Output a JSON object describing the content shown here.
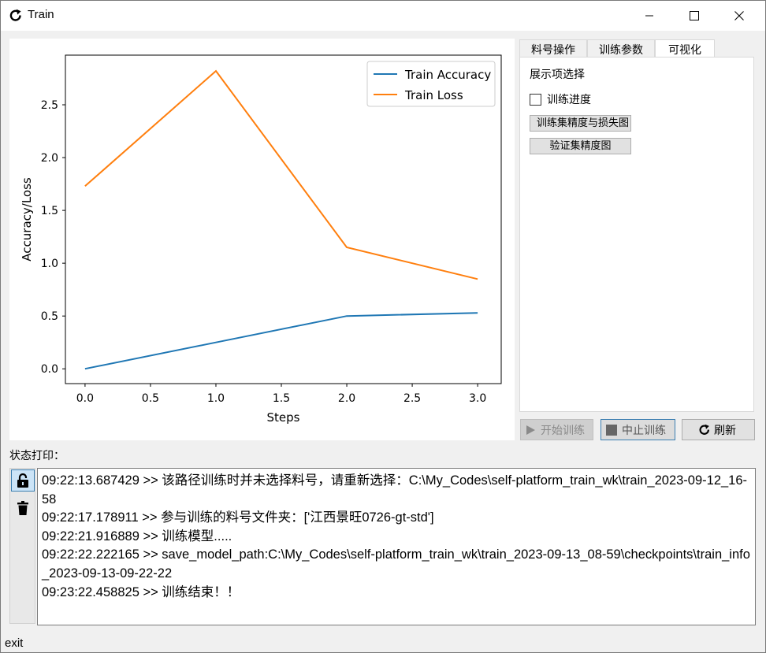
{
  "window": {
    "title": "Train",
    "icons": {
      "app": "refresh-icon",
      "minimize": "minimize-icon",
      "maximize": "maximize-icon",
      "close": "close-icon"
    }
  },
  "tabs": [
    {
      "label": "料号操作",
      "active": false
    },
    {
      "label": "训练参数",
      "active": false
    },
    {
      "label": "可视化",
      "active": true
    }
  ],
  "panel": {
    "heading": "展示项选择",
    "progress_checkbox_label": "训练进度",
    "progress_checked": false,
    "btn_train_plot": "训练集精度与损失图",
    "btn_val_plot": "验证集精度图"
  },
  "actions": {
    "start_label": "开始训练",
    "start_enabled": false,
    "stop_label": "中止训练",
    "refresh_label": "刷新"
  },
  "status": {
    "label": "状态打印：",
    "lines": [
      "09:22:13.687429 >> 该路径训练时并未选择料号，请重新选择：C:\\My_Codes\\self-platform_train_wk\\train_2023-09-12_16-58",
      "09:22:17.178911 >> 参与训练的料号文件夹：['江西景旺0726-gt-std']",
      "09:22:21.916889 >> 训练模型.....",
      "09:22:22.222165 >> save_model_path:C:\\My_Codes\\self-platform_train_wk\\train_2023-09-13_08-59\\checkpoints\\train_info_2023-09-13-09-22-22",
      "09:23:22.458825 >> 训练结束！！"
    ]
  },
  "statusbar": {
    "text": "exit"
  },
  "chart_data": {
    "type": "line",
    "x": [
      0,
      1,
      2,
      3
    ],
    "series": [
      {
        "name": "Train Accuracy",
        "color": "#1f77b4",
        "values": [
          0.0,
          0.25,
          0.5,
          0.53
        ]
      },
      {
        "name": "Train Loss",
        "color": "#ff7f0e",
        "values": [
          1.73,
          2.82,
          1.15,
          0.85
        ]
      }
    ],
    "title": "",
    "xlabel": "Steps",
    "ylabel": "Accuracy/Loss",
    "xlim": [
      -0.15,
      3.18
    ],
    "ylim": [
      -0.14,
      2.97
    ],
    "xticks": [
      "0.0",
      "0.5",
      "1.0",
      "1.5",
      "2.0",
      "2.5",
      "3.0"
    ],
    "yticks": [
      "0.0",
      "0.5",
      "1.0",
      "1.5",
      "2.0",
      "2.5"
    ],
    "grid": false,
    "legend": "top-right"
  }
}
